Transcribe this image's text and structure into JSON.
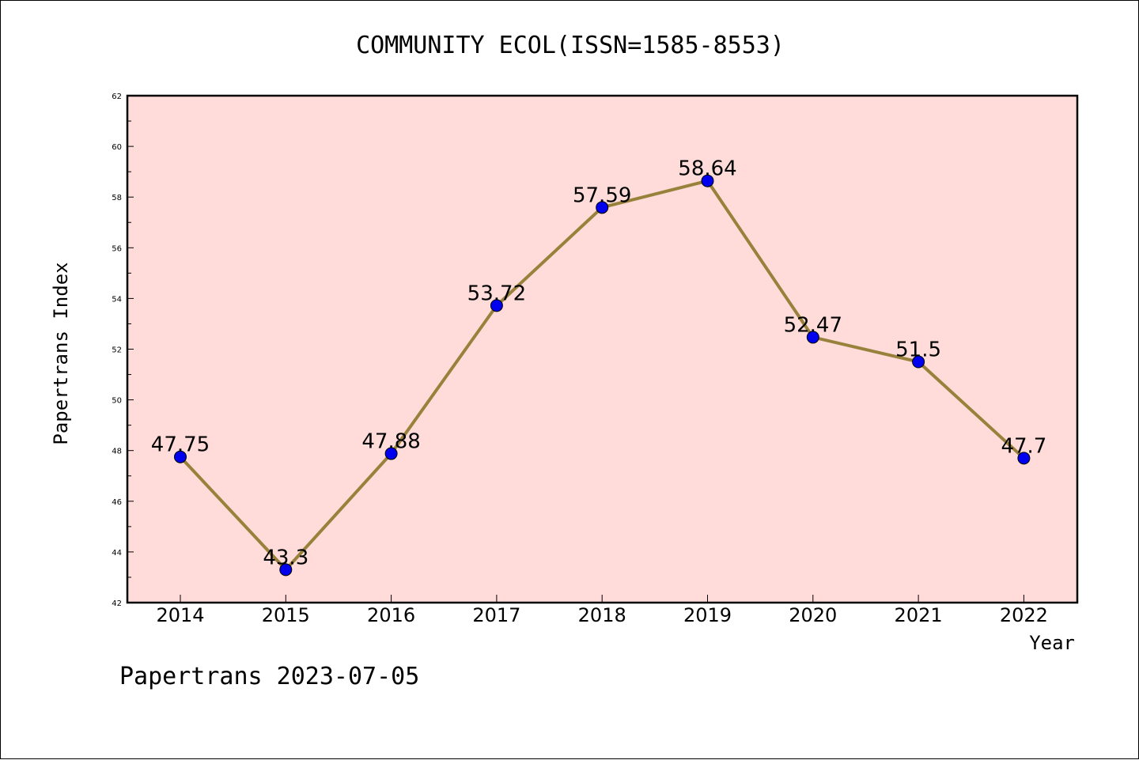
{
  "chart_data": {
    "type": "line",
    "title": "COMMUNITY ECOL(ISSN=1585-8553)",
    "xlabel": "Year",
    "ylabel": "Papertrans Index",
    "categories": [
      "2014",
      "2015",
      "2016",
      "2017",
      "2018",
      "2019",
      "2020",
      "2021",
      "2022"
    ],
    "values": [
      47.75,
      43.3,
      47.88,
      53.72,
      57.59,
      58.64,
      52.47,
      51.5,
      47.7
    ],
    "data_labels": [
      "47.75",
      "43.3",
      "47.88",
      "53.72",
      "57.59",
      "58.64",
      "52.47",
      "51.5",
      "47.7"
    ],
    "ylim": [
      42,
      62
    ],
    "yticks": [
      "42",
      "44",
      "46",
      "48",
      "50",
      "52",
      "54",
      "56",
      "58",
      "60",
      "62"
    ],
    "grid": false,
    "colors": {
      "plot_background": "#ffdcd9",
      "line": "#98823b",
      "marker": "#0000ee"
    }
  },
  "footer": "Papertrans 2023-07-05"
}
